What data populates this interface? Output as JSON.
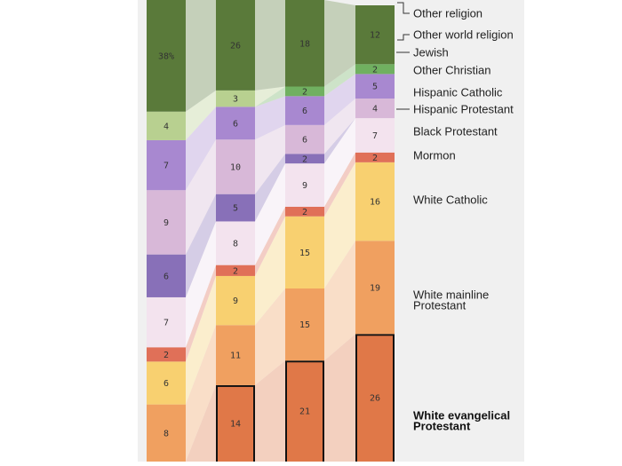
{
  "chart_data": {
    "type": "bar",
    "stacked": true,
    "note": "",
    "series": [
      {
        "name": "White evangelical Protestant",
        "color": "#e07848",
        "values": [
          null,
          14,
          21,
          26
        ],
        "bold": true,
        "outlined": true
      },
      {
        "name": "White mainline Protestant",
        "color": "#f0a060",
        "values": [
          8,
          11,
          15,
          19
        ]
      },
      {
        "name": "White Catholic",
        "color": "#f8d070",
        "values": [
          6,
          9,
          15,
          16
        ]
      },
      {
        "name": "Mormon",
        "color": "#e07058",
        "values": [
          2,
          2,
          2,
          2
        ]
      },
      {
        "name": "Black Protestant",
        "color": "#f3e3ee",
        "values": [
          7,
          8,
          9,
          7
        ]
      },
      {
        "name": "Hispanic Protestant",
        "color": "#8870b8",
        "values": [
          6,
          5,
          2,
          null
        ]
      },
      {
        "name": "Hispanic Catholic",
        "color": "#d8b8d8",
        "values": [
          9,
          10,
          6,
          4
        ]
      },
      {
        "name": "Other Christian",
        "color": "#a888d0",
        "values": [
          7,
          6,
          6,
          5
        ]
      },
      {
        "name": "Jewish",
        "color": "#70b060",
        "values": [
          null,
          null,
          2,
          2
        ]
      },
      {
        "name": "Other world religion",
        "color": "#b8d090",
        "values": [
          4,
          3,
          null,
          null
        ]
      },
      {
        "name": "Other religion",
        "color": "#a8c880",
        "values": [
          null,
          null,
          null,
          null
        ]
      },
      {
        "name": "Unaffiliated",
        "color": "#5a7a3a",
        "values": [
          "38%",
          26,
          18,
          12
        ]
      }
    ],
    "legend_labels": [
      {
        "text": "Other religion",
        "leader": true
      },
      {
        "text": "Other world religion",
        "leader": true
      },
      {
        "text": "Jewish",
        "leader": true
      },
      {
        "text": "Other Christian"
      },
      {
        "text": "Hispanic Catholic"
      },
      {
        "text": "Hispanic Protestant",
        "leader": true
      },
      {
        "text": "Black Protestant"
      },
      {
        "text": "Mormon"
      },
      {
        "text": "White Catholic"
      },
      {
        "text": "White mainline Protestant",
        "lines": [
          "White mainline",
          "Protestant"
        ]
      },
      {
        "text": "White evangelical Protestant",
        "lines": [
          "White evangelical",
          "Protestant"
        ],
        "bold": true
      }
    ]
  }
}
